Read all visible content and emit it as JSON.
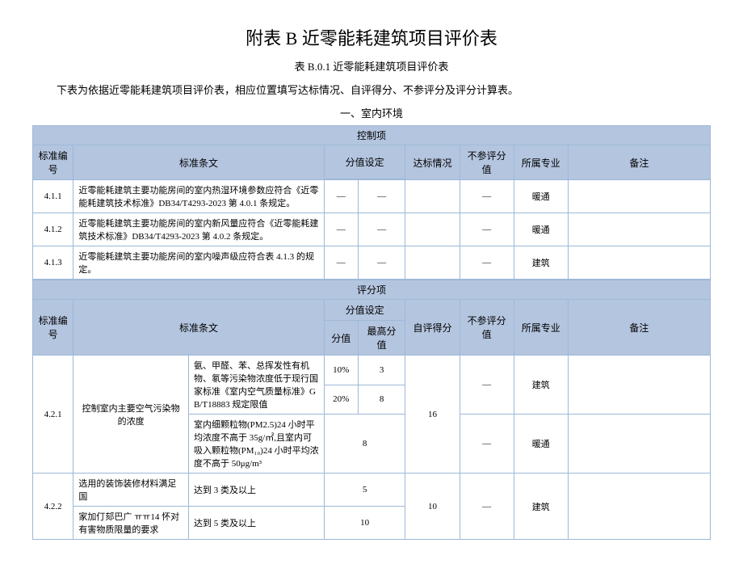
{
  "title": "附表 B 近零能耗建筑项目评价表",
  "subtitle": "表 B.0.1 近零能耗建筑项目评价表",
  "intro": "下表为依据近零能耗建筑项目评价表，相应位置填写达标情况、自评得分、不参评分及评分计算表。",
  "section1": "一、室内环境",
  "headers": {
    "control_band": "控制项",
    "score_band": "评分项",
    "code": "标准编号",
    "desc": "标准条文",
    "fenzhi": "分值设定",
    "fen_sub": "分值",
    "max_sub": "最高分值",
    "dabiao": "达标情况",
    "selfscore": "自评得分",
    "noscore": "不参评分值",
    "prof": "所属专业",
    "note": "备注"
  },
  "dash": "—",
  "control_rows": [
    {
      "code": "4.1.1",
      "desc": "近零能耗建筑主要功能房间的室内热湿环境参数应符合《近零能耗建筑技术标准》DB34/T4293-2023 第 4.0.1 条规定。",
      "dabiao": "—",
      "noscore": "—",
      "prof": "暖通"
    },
    {
      "code": "4.1.2",
      "desc": "近零能耗建筑主要功能房间的室内新风量应符合《近零能耗建筑技术标准》DB34/T4293-2023 第 4.0.2 条规定。",
      "dabiao": "—",
      "noscore": "—",
      "prof": "暖通"
    },
    {
      "code": "4.1.3",
      "desc": "近零能耗建筑主要功能房间的室内噪声级应符合表 4.1.3 的规定。",
      "dabiao": "—",
      "noscore": "—",
      "prof": "建筑"
    }
  ],
  "score_421": {
    "code": "4.2.1",
    "label": "控制室内主要空气污染物的浓度",
    "sub_a_desc": "氨、甲醛、苯、总挥发性有机物、氡等污染物浓度低于现行国家标准《室内空气质量标准》GB/T18883 规定限值",
    "sub_a_pct1": "10%",
    "sub_a_val1": "3",
    "sub_a_pct2": "20%",
    "sub_a_val2": "8",
    "sub_b_desc": "室内细颗粒物(PM2.5)24 小时平均浓度不高于 35g/㎡,且室内可吸入颗粒物(PM₁₀)24 小时平均浓度不高于 50μg/m³",
    "sub_b_val": "8",
    "max": "16",
    "noscore": "—",
    "prof_a": "建筑",
    "prof_b": "暖通"
  },
  "score_422": {
    "code": "4.2.2",
    "label_a": "选用的装饰装修材料满足国",
    "label_b": "家加仃郂巴广 ㅠㅠ14 怀对有害物质限量的要求",
    "sub_a_desc": "达到 3 类及以上",
    "sub_a_val": "5",
    "sub_b_desc": "达到 5 类及以上",
    "sub_b_val": "10",
    "max": "10",
    "noscore": "—",
    "prof": "建筑"
  }
}
